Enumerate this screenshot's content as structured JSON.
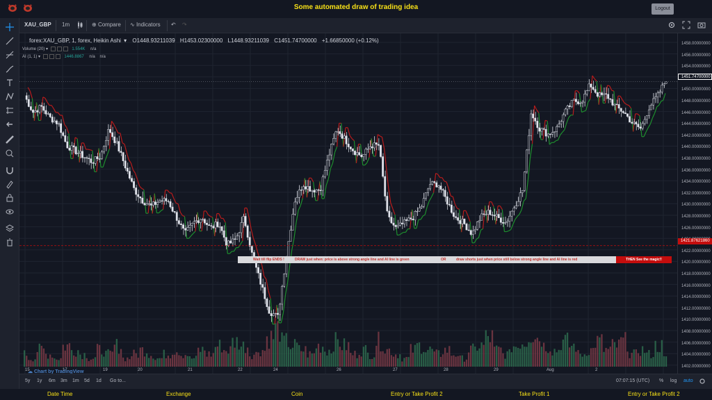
{
  "header": {
    "title": "Some automated draw of trading idea",
    "logout_label": "Logout"
  },
  "toolbar": {
    "symbol": "XAU_GBP",
    "interval": "1m",
    "compare_label": "Compare",
    "indicators_label": "Indicators"
  },
  "legend": {
    "main": "forex:XAU_GBP, 1, forex, Heikin Ashi",
    "open": "O1448.93211039",
    "high": "H1453.02300000",
    "low": "L1448.93211039",
    "close": "C1451.74700000",
    "change": "+1.66850000 (+0.12%)",
    "volume_label": "Volume (20)",
    "volume_value": "1.554K",
    "volume_na": "n/a",
    "ai_label": "AI (1, 1)",
    "ai_value": "1446.8867",
    "ai_na1": "n/a",
    "ai_na2": "n/a"
  },
  "annotation": {
    "part1": "Wait till flip ENDS  !",
    "part2": "DRAW just when:  price is above strong angle line and AI line is green",
    "part3": "OR",
    "part4": "draw shorts just when price still below strong angle line and AI line is red",
    "cta": "THEN See the magic!!"
  },
  "price_axis": {
    "ticks": [
      "1458.00000000",
      "1456.00000000",
      "1454.00000000",
      "1452.00000000",
      "1450.00000000",
      "1448.00000000",
      "1446.00000000",
      "1444.00000000",
      "1442.00000000",
      "1440.00000000",
      "1438.00000000",
      "1436.00000000",
      "1434.00000000",
      "1432.00000000",
      "1430.00000000",
      "1428.00000000",
      "1426.00000000",
      "1424.00000000",
      "1422.00000000",
      "1420.00000000",
      "1418.00000000",
      "1416.00000000",
      "1414.00000000",
      "1412.00000000",
      "1410.00000000",
      "1408.00000000",
      "1406.00000000",
      "1404.00000000",
      "1402.00000000",
      "1400.00000000"
    ],
    "last_price": "1451.74700000",
    "line_price": "1421.87621860"
  },
  "time_axis": {
    "ticks": [
      "15",
      "17",
      "19",
      "20",
      "21",
      "22",
      "24",
      "26",
      "27",
      "28",
      "29",
      "Aug",
      "2"
    ]
  },
  "watermark": "Chart by TradingView",
  "bottom": {
    "ranges": [
      "5y",
      "1y",
      "6m",
      "3m",
      "1m",
      "5d",
      "1d"
    ],
    "goto_label": "Go to...",
    "time": "07:07:15 (UTC)",
    "pct": "%",
    "log": "log",
    "auto": "auto"
  },
  "footer": {
    "items": [
      "Date Time",
      "Exchange",
      "Coin",
      "Entry or Take Profit 2",
      "Take Profit 1",
      "Entry or Take Profit 2"
    ]
  },
  "colors": {
    "accent": "#f7e017",
    "up": "#26a69a",
    "down": "#ef5350",
    "ai_green": "#1e8f2e",
    "ai_red": "#b71c1c"
  },
  "chart_data": {
    "type": "candlestick",
    "style": "heikin-ashi",
    "ylim": [
      1400,
      1459
    ],
    "line_level": 1421.8762186,
    "close_path": [
      1449,
      1446,
      1447,
      1445,
      1444,
      1440,
      1439,
      1438,
      1437,
      1438,
      1443,
      1440,
      1436,
      1432,
      1430,
      1429,
      1430,
      1430,
      1427,
      1424,
      1426,
      1427,
      1425,
      1426,
      1422,
      1423,
      1427,
      1420,
      1415,
      1410,
      1409,
      1420,
      1430,
      1433,
      1432,
      1432,
      1438,
      1443,
      1441,
      1439,
      1438,
      1440,
      1440,
      1427,
      1425,
      1426,
      1427,
      1429,
      1433,
      1433,
      1430,
      1427,
      1426,
      1424,
      1427,
      1428,
      1427,
      1426,
      1429,
      1432,
      1446,
      1443,
      1442,
      1443,
      1446,
      1448,
      1448,
      1451,
      1449,
      1449,
      1447,
      1446,
      1444,
      1443,
      1447,
      1449,
      1452
    ],
    "volume_path": [
      3,
      2,
      4,
      3,
      2,
      5,
      4,
      3,
      2,
      4,
      3,
      5,
      2,
      3,
      4,
      3,
      2,
      3,
      4,
      3,
      2,
      4,
      3,
      5,
      4,
      6,
      5,
      3,
      4,
      7,
      9,
      6,
      5,
      4,
      3,
      5,
      4,
      6,
      5,
      3,
      4,
      3,
      6,
      4,
      3,
      2,
      4,
      5,
      4,
      3,
      4,
      3,
      2,
      4,
      5,
      7,
      4,
      3,
      5,
      6,
      8,
      7,
      5,
      4,
      6,
      5,
      3,
      4,
      6,
      4,
      5,
      6,
      3,
      4,
      3,
      5,
      2
    ]
  }
}
